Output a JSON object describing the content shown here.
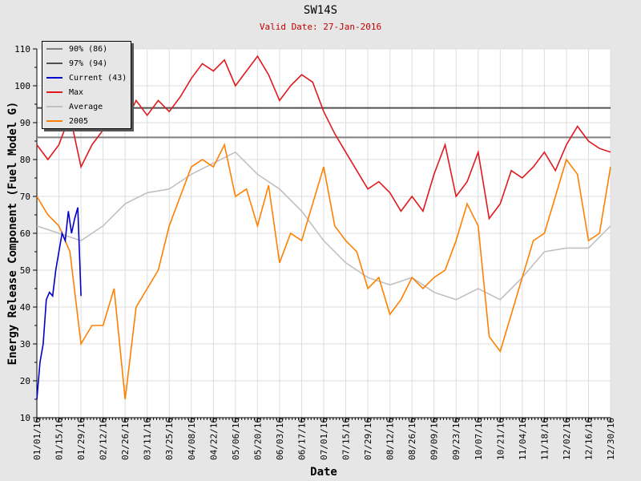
{
  "title": "SW14S",
  "subtitle": "Valid Date: 27-Jan-2016",
  "chart_data": {
    "type": "line",
    "title": "SW14S",
    "subtitle": "Valid Date: 27-Jan-2016",
    "xlabel": "Date",
    "ylabel": "Energy Release Component (Fuel Model G)",
    "ylim": [
      10,
      110
    ],
    "yticks": [
      10,
      20,
      30,
      40,
      50,
      60,
      70,
      80,
      90,
      100,
      110
    ],
    "xlim_days": [
      0,
      364
    ],
    "xticks": [
      "01/01/16",
      "01/15/16",
      "01/29/16",
      "02/12/16",
      "02/26/16",
      "03/11/16",
      "03/25/16",
      "04/08/16",
      "04/22/16",
      "05/06/16",
      "05/20/16",
      "06/03/16",
      "06/17/16",
      "07/01/16",
      "07/15/16",
      "07/29/16",
      "08/12/16",
      "08/26/16",
      "09/09/16",
      "09/23/16",
      "10/07/16",
      "10/21/16",
      "11/04/16",
      "11/18/16",
      "12/02/16",
      "12/16/16",
      "12/30/16"
    ],
    "grid": true,
    "legend_position": "top-left",
    "reference_lines": [
      {
        "name": "90% (86)",
        "value": 86,
        "color": "#808080"
      },
      {
        "name": "97% (94)",
        "value": 94,
        "color": "#505050"
      }
    ],
    "series": [
      {
        "name": "Current (43)",
        "color": "#0000cc",
        "step_days": 2,
        "values": [
          15,
          25,
          30,
          42,
          44,
          43,
          50,
          55,
          60,
          58,
          66,
          60,
          64,
          67,
          43
        ]
      },
      {
        "name": "Max",
        "color": "#e0191e",
        "step_days": 7,
        "values": [
          84,
          80,
          84,
          92,
          78,
          84,
          88,
          94,
          90,
          96,
          92,
          96,
          93,
          97,
          102,
          106,
          104,
          107,
          100,
          104,
          108,
          103,
          96,
          100,
          103,
          101,
          93,
          87,
          82,
          77,
          72,
          74,
          71,
          66,
          70,
          66,
          76,
          84,
          70,
          74,
          82,
          64,
          68,
          77,
          75,
          78,
          82,
          77,
          84,
          89,
          85,
          83,
          82
        ]
      },
      {
        "name": "Average",
        "color": "#c0c0c0",
        "step_days": 14,
        "values": [
          62,
          60,
          58,
          62,
          68,
          71,
          72,
          76,
          79,
          82,
          76,
          72,
          66,
          58,
          52,
          48,
          46,
          48,
          44,
          42,
          45,
          42,
          48,
          55,
          56,
          56,
          62
        ]
      },
      {
        "name": "2005",
        "color": "#ff8000",
        "step_days": 7,
        "values": [
          70,
          65,
          62,
          55,
          30,
          35,
          35,
          45,
          15,
          40,
          45,
          50,
          62,
          70,
          78,
          80,
          78,
          84,
          70,
          72,
          62,
          73,
          52,
          60,
          58,
          68,
          78,
          62,
          58,
          55,
          45,
          48,
          38,
          42,
          48,
          45,
          48,
          50,
          58,
          68,
          62,
          32,
          28,
          38,
          48,
          58,
          60,
          70,
          80,
          76,
          58,
          60,
          78
        ]
      }
    ]
  }
}
